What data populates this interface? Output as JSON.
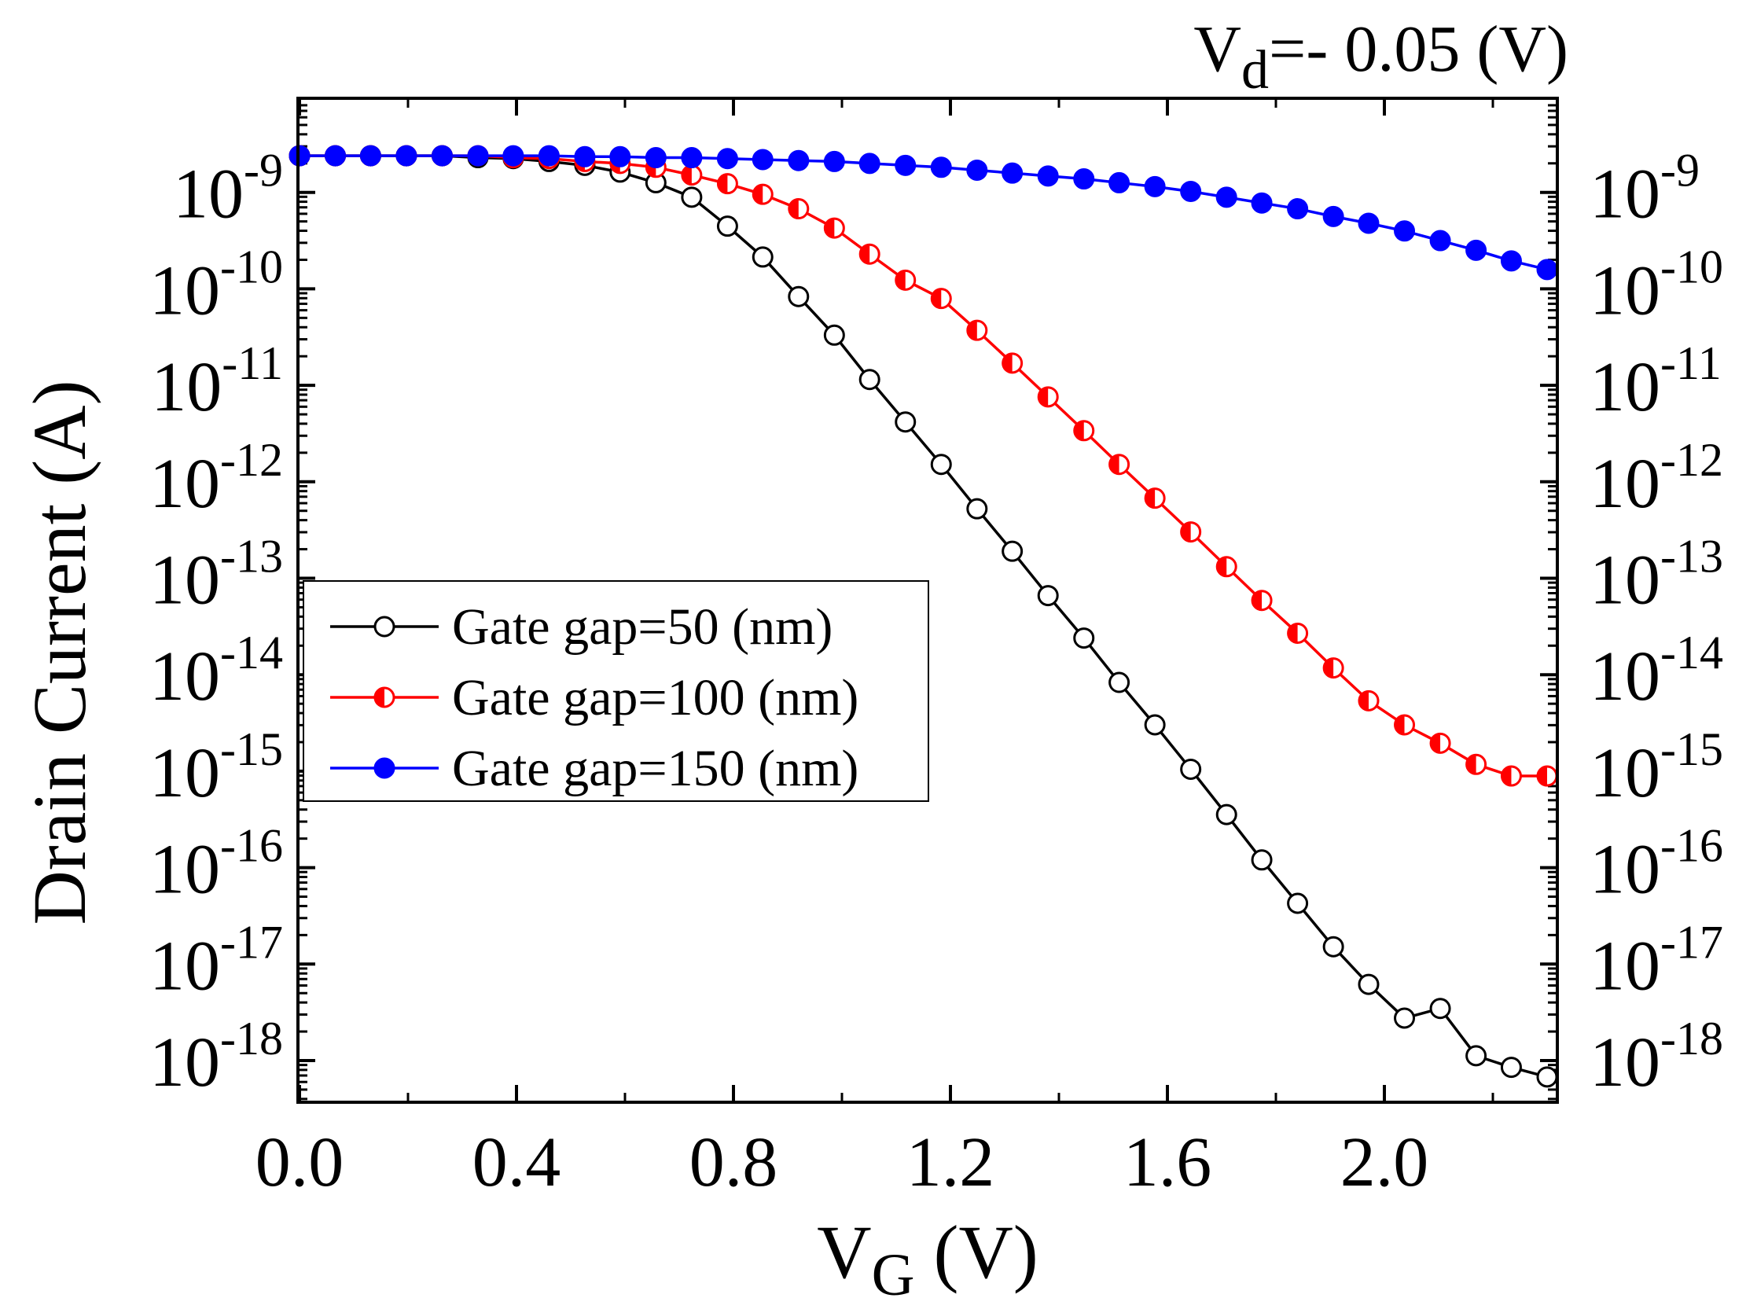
{
  "chart_data": {
    "type": "line",
    "title": "",
    "annotation": {
      "base": "V",
      "sub": "d",
      "rest": "=- 0.05 (V)"
    },
    "xlabel": {
      "base": "V",
      "sub": "G",
      "rest": " (V)"
    },
    "ylabel": "Drain Current (A)",
    "xlim": [
      0.0,
      2.3
    ],
    "x_ticks": [
      "0.0",
      "0.4",
      "0.8",
      "1.2",
      "1.6",
      "2.0"
    ],
    "ylim_log10": [
      -18.4,
      -8.05
    ],
    "y_tick_exponents": [
      -18,
      -17,
      -16,
      -15,
      -14,
      -13,
      -12,
      -11,
      -10,
      -9
    ],
    "y_tick_base": "10",
    "log_scale_y": true,
    "grid": false,
    "legend_position": "left-middle",
    "x": [
      0.0,
      0.066,
      0.131,
      0.197,
      0.263,
      0.329,
      0.394,
      0.46,
      0.526,
      0.591,
      0.657,
      0.723,
      0.789,
      0.854,
      0.92,
      0.986,
      1.051,
      1.117,
      1.183,
      1.249,
      1.314,
      1.38,
      1.446,
      1.511,
      1.577,
      1.643,
      1.709,
      1.774,
      1.84,
      1.906,
      1.971,
      2.037,
      2.103,
      2.169,
      2.234,
      2.3
    ],
    "series": [
      {
        "name": "Gate gap=50 (nm)",
        "color": "#000000",
        "marker": "open-circle",
        "log10_values": [
          -8.62,
          -8.62,
          -8.62,
          -8.62,
          -8.62,
          -8.64,
          -8.65,
          -8.68,
          -8.72,
          -8.79,
          -8.9,
          -9.05,
          -9.35,
          -9.67,
          -10.08,
          -10.48,
          -10.94,
          -11.38,
          -11.82,
          -12.28,
          -12.72,
          -13.18,
          -13.62,
          -14.08,
          -14.52,
          -14.98,
          -15.45,
          -15.92,
          -16.37,
          -16.82,
          -17.21,
          -17.56,
          -17.46,
          -17.95,
          -18.07,
          -18.17
        ]
      },
      {
        "name": "Gate gap=100 (nm)",
        "color": "#ff0000",
        "marker": "half-filled-circle",
        "log10_values": [
          -8.62,
          -8.62,
          -8.62,
          -8.62,
          -8.62,
          -8.62,
          -8.64,
          -8.65,
          -8.68,
          -8.7,
          -8.74,
          -8.82,
          -8.91,
          -9.02,
          -9.17,
          -9.37,
          -9.64,
          -9.91,
          -10.1,
          -10.43,
          -10.77,
          -11.12,
          -11.47,
          -11.82,
          -12.17,
          -12.52,
          -12.88,
          -13.23,
          -13.57,
          -13.93,
          -14.27,
          -14.52,
          -14.71,
          -14.93,
          -15.05,
          -15.05
        ]
      },
      {
        "name": "Gate gap=150 (nm)",
        "color": "#0000ff",
        "marker": "filled-circle",
        "log10_values": [
          -8.62,
          -8.62,
          -8.62,
          -8.62,
          -8.62,
          -8.62,
          -8.62,
          -8.62,
          -8.63,
          -8.63,
          -8.64,
          -8.64,
          -8.65,
          -8.66,
          -8.67,
          -8.68,
          -8.7,
          -8.72,
          -8.74,
          -8.77,
          -8.8,
          -8.83,
          -8.86,
          -8.9,
          -8.94,
          -8.99,
          -9.05,
          -9.11,
          -9.17,
          -9.25,
          -9.32,
          -9.4,
          -9.5,
          -9.6,
          -9.71,
          -9.8
        ]
      }
    ]
  }
}
